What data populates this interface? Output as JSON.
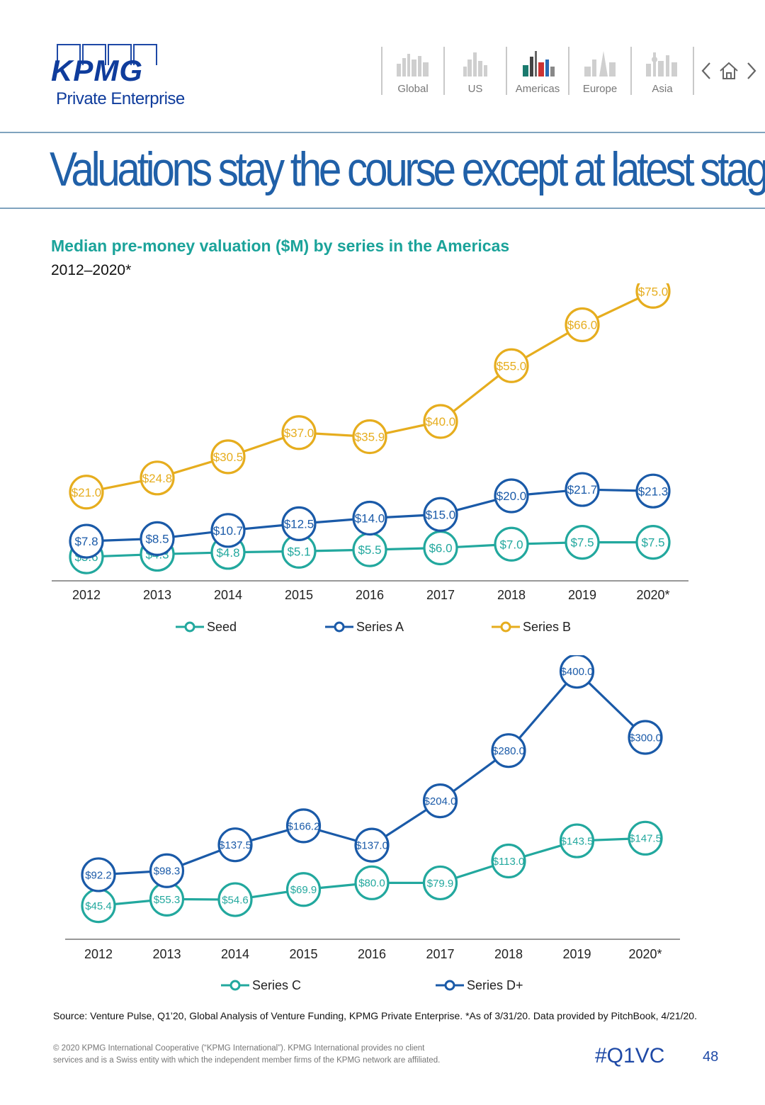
{
  "header": {
    "brand": "KPMG",
    "brand_sub": "Private Enterprise",
    "nav": [
      {
        "label": "Global",
        "active": false,
        "icon": "global-skyline-icon"
      },
      {
        "label": "US",
        "active": false,
        "icon": "us-skyline-icon"
      },
      {
        "label": "Americas",
        "active": true,
        "icon": "americas-skyline-icon"
      },
      {
        "label": "Europe",
        "active": false,
        "icon": "europe-skyline-icon"
      },
      {
        "label": "Asia",
        "active": false,
        "icon": "asia-skyline-icon"
      }
    ],
    "controls": [
      "prev-icon",
      "home-icon",
      "next-icon"
    ]
  },
  "title": "Valuations stay the course except at latest stage",
  "subtitle": "Median pre-money valuation ($M) by series in the Americas",
  "period": "2012–2020*",
  "colors": {
    "seed": "#22a89e",
    "series_a": "#1a5aa8",
    "series_b": "#e6ad1e",
    "series_c": "#22a89e",
    "series_d": "#1a5aa8",
    "title": "#2060a8",
    "accent": "#1e49a6"
  },
  "chart_data": [
    {
      "type": "line",
      "title": "Median pre-money valuation ($M) by series in the Americas",
      "categories": [
        "2012",
        "2013",
        "2014",
        "2015",
        "2016",
        "2017",
        "2018",
        "2019",
        "2020*"
      ],
      "series": [
        {
          "name": "Seed",
          "values": [
            3.6,
            4.3,
            4.8,
            5.1,
            5.5,
            6.0,
            7.0,
            7.5,
            7.5
          ],
          "labels": [
            "$3.6",
            "$4.3",
            "$4.8",
            "$5.1",
            "$5.5",
            "$6.0",
            "$7.0",
            "$7.5",
            "$7.5"
          ],
          "color": "#22a89e"
        },
        {
          "name": "Series A",
          "values": [
            7.8,
            8.5,
            10.7,
            12.5,
            14.0,
            15.0,
            20.0,
            21.7,
            21.3
          ],
          "labels": [
            "$7.8",
            "$8.5",
            "$10.7",
            "$12.5",
            "$14.0",
            "$15.0",
            "$20.0",
            "$21.7",
            "$21.3"
          ],
          "color": "#1a5aa8"
        },
        {
          "name": "Series B",
          "values": [
            21.0,
            24.8,
            30.5,
            37.0,
            35.9,
            40.0,
            55.0,
            66.0,
            75.0
          ],
          "labels": [
            "$21.0",
            "$24.8",
            "$30.5",
            "$37.0",
            "$35.9",
            "$40.0",
            "$55.0",
            "$66.0",
            "$75.0"
          ],
          "color": "#e6ad1e"
        }
      ],
      "ylim": [
        0,
        80
      ],
      "legend": "bottom"
    },
    {
      "type": "line",
      "categories": [
        "2012",
        "2013",
        "2014",
        "2015",
        "2016",
        "2017",
        "2018",
        "2019",
        "2020*"
      ],
      "series": [
        {
          "name": "Series C",
          "values": [
            45.4,
            55.3,
            54.6,
            69.9,
            80.0,
            79.9,
            113.0,
            143.5,
            147.5
          ],
          "labels": [
            "$45.4",
            "$55.3",
            "$54.6",
            "$69.9",
            "$80.0",
            "$79.9",
            "$113.0",
            "$143.5",
            "$147.5"
          ],
          "color": "#22a89e"
        },
        {
          "name": "Series D+",
          "values": [
            92.2,
            98.3,
            137.5,
            166.2,
            137.0,
            204.0,
            280.0,
            400.0,
            300.0
          ],
          "labels": [
            "$92.2",
            "$98.3",
            "$137.5",
            "$166.2",
            "$137.0",
            "$204.0",
            "$280.0",
            "$400.0",
            "$300.0"
          ],
          "color": "#1a5aa8"
        }
      ],
      "ylim": [
        0,
        420
      ],
      "legend": "bottom"
    }
  ],
  "footer": {
    "source": "Source: Venture Pulse, Q1’20, Global Analysis of Venture Funding, KPMG Private Enterprise. *As of 3/31/20. Data provided by PitchBook, 4/21/20.",
    "copyright_line1": "© 2020 KPMG International Cooperative (“KPMG International”). KPMG International provides no client",
    "copyright_line2": "services and is a Swiss entity with which the independent member firms of the KPMG network are affiliated.",
    "hashtag": "#Q1VC",
    "page": "48"
  }
}
